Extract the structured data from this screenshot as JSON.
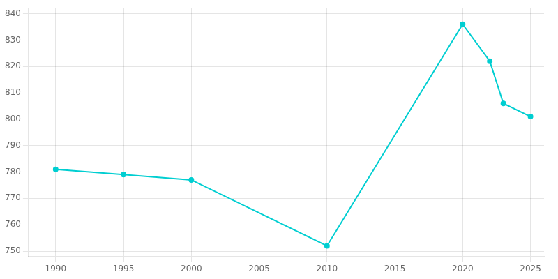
{
  "chart_data": {
    "type": "line",
    "x": [
      1990,
      1995,
      2000,
      2010,
      2020,
      2022,
      2023,
      2025
    ],
    "values": [
      781,
      779,
      777,
      752,
      836,
      822,
      806,
      801
    ],
    "color": "#00CED1",
    "marker": "circle",
    "xlim": [
      1988,
      2026
    ],
    "ylim": [
      748,
      842
    ],
    "xticks": [
      1990,
      1995,
      2000,
      2005,
      2010,
      2015,
      2020,
      2025
    ],
    "yticks": [
      750,
      760,
      770,
      780,
      790,
      800,
      810,
      820,
      830,
      840
    ],
    "grid": true
  }
}
